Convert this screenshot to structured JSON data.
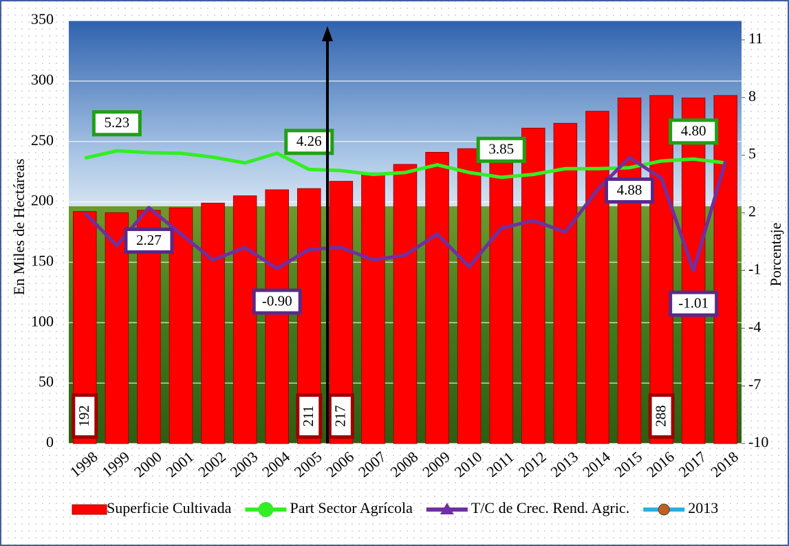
{
  "chart_data": {
    "type": "bar",
    "categories": [
      "1998",
      "1999",
      "2000",
      "2001",
      "2002",
      "2003",
      "2004",
      "2005",
      "2006",
      "2007",
      "2008",
      "2009",
      "2010",
      "2011",
      "2012",
      "2013",
      "2014",
      "2015",
      "2016",
      "2017",
      "2018"
    ],
    "y_label": "En Miles de Hectáreas",
    "y2_label": "Porcentaje",
    "ylim": [
      0,
      350
    ],
    "yticks": [
      0,
      50,
      100,
      150,
      200,
      250,
      300,
      350
    ],
    "y2lim": [
      -10,
      12
    ],
    "y2ticks": [
      -10,
      -7,
      -4,
      -1,
      2,
      5,
      8,
      11
    ],
    "grid": true,
    "legend": "bottom",
    "series": [
      {
        "name": "Superficie Cultivada",
        "type": "bar",
        "color": "#ff0000",
        "values": [
          192,
          191,
          193,
          195,
          199,
          205,
          210,
          211,
          217,
          224,
          231,
          241,
          244,
          250,
          261,
          265,
          275,
          286,
          288,
          286,
          288
        ],
        "value_labels": [
          "192",
          null,
          null,
          null,
          null,
          null,
          null,
          "211",
          "217",
          null,
          null,
          null,
          null,
          null,
          null,
          null,
          null,
          null,
          "288",
          null,
          null
        ]
      },
      {
        "name": "Part Sector Agrícola",
        "type": "line",
        "axis": "y2",
        "color": "#33ee22",
        "values": [
          4.85,
          5.23,
          5.13,
          5.1,
          4.9,
          4.6,
          5.1,
          4.26,
          4.2,
          4.0,
          4.1,
          4.5,
          4.1,
          3.85,
          4.0,
          4.3,
          4.3,
          4.35,
          4.7,
          4.8,
          4.6
        ],
        "value_labels": [
          null,
          "5.23",
          null,
          null,
          null,
          null,
          null,
          "4.26",
          null,
          null,
          null,
          null,
          null,
          "3.85",
          null,
          null,
          null,
          null,
          null,
          "4.80",
          null
        ]
      },
      {
        "name": "T/C de Crec. Rend. Agric.",
        "type": "line",
        "axis": "y2",
        "color": "#7030a0",
        "values": [
          2.0,
          0.3,
          2.27,
          0.9,
          -0.45,
          0.2,
          -0.9,
          0.1,
          0.2,
          -0.45,
          -0.2,
          0.9,
          -0.8,
          1.2,
          1.6,
          1.0,
          3.2,
          4.88,
          3.8,
          -1.01,
          4.7
        ],
        "value_labels": [
          null,
          null,
          "2.27",
          null,
          null,
          null,
          "-0.90",
          null,
          null,
          null,
          null,
          null,
          null,
          null,
          null,
          null,
          null,
          "4.88",
          null,
          "-1.01",
          null
        ]
      },
      {
        "name": "2013",
        "type": "line",
        "axis": "y2",
        "color": "#2ab0e0",
        "values": [
          null,
          null,
          null,
          null,
          null,
          null,
          null,
          null,
          null,
          null,
          null,
          null,
          null,
          null,
          null,
          null,
          null,
          null,
          null,
          null,
          null
        ]
      }
    ]
  }
}
